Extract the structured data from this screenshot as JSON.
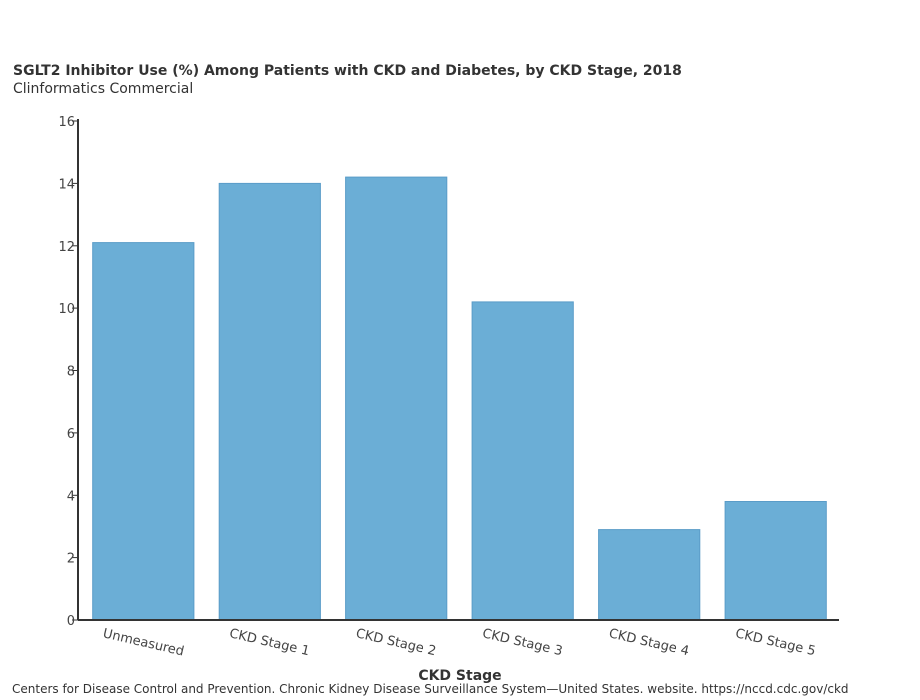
{
  "header": {
    "title": "SGLT2 Inhibitor Use (%) Among Patients with CKD and Diabetes, by CKD Stage, 2018",
    "subtitle": "Clinformatics Commercial"
  },
  "footer": {
    "source": "Centers for Disease Control and Prevention. Chronic Kidney Disease Surveillance System—United States. website. https://nccd.cdc.gov/ckd"
  },
  "colors": {
    "bar": "#6baed6",
    "axis": "#333333"
  },
  "chart_data": {
    "type": "bar",
    "title": "SGLT2 Inhibitor Use (%) Among Patients with CKD and Diabetes, by CKD Stage, 2018",
    "subtitle": "Clinformatics Commercial",
    "xlabel": "CKD Stage",
    "ylabel": "",
    "categories": [
      "Unmeasured",
      "CKD Stage 1",
      "CKD Stage 2",
      "CKD Stage 3",
      "CKD Stage 4",
      "CKD Stage 5"
    ],
    "values": [
      12.1,
      14.0,
      14.2,
      10.2,
      2.9,
      3.8
    ],
    "ylim": [
      0,
      16
    ],
    "yticks": [
      "0",
      "2",
      "4",
      "6",
      "8",
      "10",
      "12",
      "14",
      "16"
    ],
    "grid": false,
    "legend": "none"
  }
}
